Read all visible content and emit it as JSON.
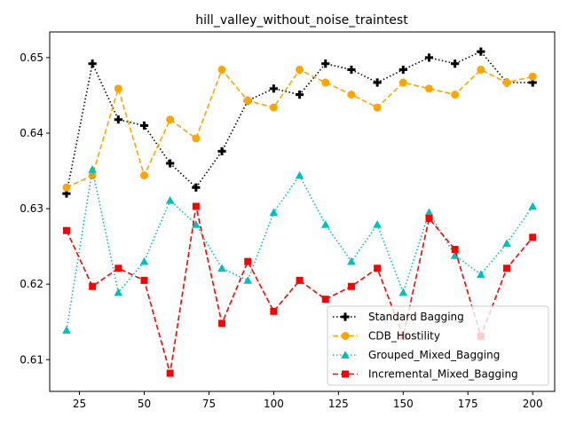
{
  "chart_data": {
    "type": "line",
    "title": "hill_valley_without_noise_traintest",
    "xlabel": "",
    "ylabel": "",
    "xlim": [
      13.5,
      208.5
    ],
    "ylim": [
      0.6058,
      0.6534
    ],
    "xticks": [
      25,
      50,
      75,
      100,
      125,
      150,
      175,
      200
    ],
    "yticks": [
      0.61,
      0.62,
      0.63,
      0.64,
      0.65
    ],
    "ytick_labels": [
      "0.61",
      "0.62",
      "0.63",
      "0.64",
      "0.65"
    ],
    "grid": false,
    "legend_position": "lower-right",
    "x": [
      20,
      30,
      40,
      50,
      60,
      70,
      80,
      90,
      100,
      110,
      120,
      130,
      140,
      150,
      160,
      170,
      180,
      190,
      200
    ],
    "series": [
      {
        "name": "Standard Bagging",
        "color": "#000000",
        "line": "dotted",
        "marker": "plus",
        "values": [
          0.632,
          0.6492,
          0.6418,
          0.641,
          0.636,
          0.6328,
          0.6376,
          0.6443,
          0.6459,
          0.6451,
          0.6492,
          0.6484,
          0.6467,
          0.6484,
          0.65,
          0.6492,
          0.6508,
          0.6467,
          0.6467
        ]
      },
      {
        "name": "CDB_Hostility",
        "color": "#ffa500",
        "line": "dashed",
        "marker": "circle",
        "values": [
          0.6328,
          0.6344,
          0.6459,
          0.6344,
          0.6418,
          0.6393,
          0.6484,
          0.6443,
          0.6434,
          0.6484,
          0.6467,
          0.6451,
          0.6434,
          0.6467,
          0.6459,
          0.6451,
          0.6484,
          0.6467,
          0.6475
        ]
      },
      {
        "name": "Grouped_Mixed_Bagging",
        "color": "#00bfbf",
        "line": "dotted",
        "marker": "triangle",
        "values": [
          0.6139,
          0.6352,
          0.6189,
          0.623,
          0.6311,
          0.6279,
          0.6221,
          0.6205,
          0.6295,
          0.6344,
          0.6279,
          0.623,
          0.6279,
          0.6189,
          0.6295,
          0.6238,
          0.6213,
          0.6254,
          0.6303
        ]
      },
      {
        "name": "Incremental_Mixed_Bagging",
        "color": "#ff0000",
        "line": "dashed",
        "marker": "square",
        "values": [
          0.6271,
          0.6197,
          0.6221,
          0.6205,
          0.6082,
          0.6303,
          0.6148,
          0.623,
          0.6164,
          0.6205,
          0.618,
          0.6197,
          0.6221,
          0.6131,
          0.6287,
          0.6246,
          0.6131,
          0.6221,
          0.6262
        ]
      }
    ]
  }
}
